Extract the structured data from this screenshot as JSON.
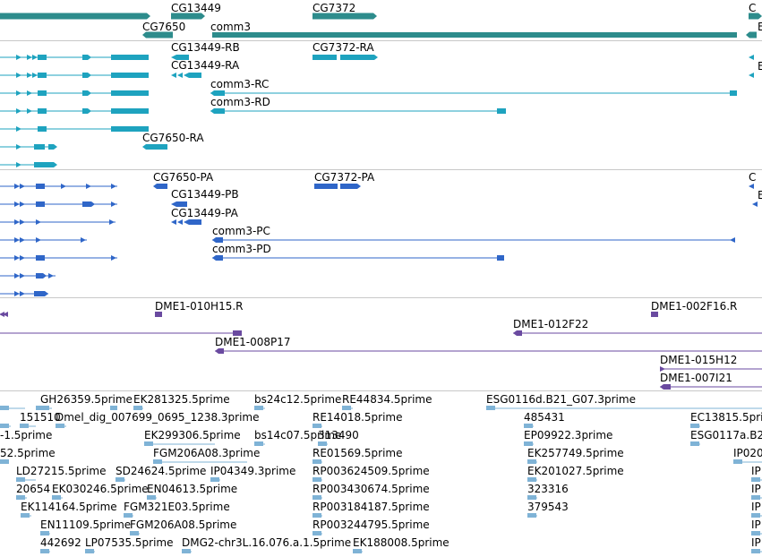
{
  "colors": {
    "gene": "#2d8c8c",
    "mrna": "#1ea3bf",
    "protein": "#2f66c8",
    "clone": "#6a4aa0",
    "est": "#7fb3d6",
    "separator": "#c8c8c8"
  },
  "gene_track": {
    "labels": [
      "CG13449",
      "CG7372",
      "C",
      "CG7650",
      "comm3",
      "E"
    ]
  },
  "transcript_track": {
    "labels": [
      "CG13449-RB",
      "CG7372-RA",
      "E",
      "CG13449-RA",
      "comm3-RC",
      "comm3-RD",
      "CG7650-RA"
    ]
  },
  "protein_track": {
    "labels": [
      "CG7650-PA",
      "CG7372-PA",
      "C",
      "E",
      "CG13449-PB",
      "CG13449-PA",
      "comm3-PC",
      "comm3-PD"
    ]
  },
  "clone_track": {
    "labels": [
      "DME1-010H15.R",
      "DME1-002F16.R",
      "DME1-012F22",
      "DME1-008P17",
      "DME1-015H12",
      "DME1-007I21"
    ]
  },
  "est_track": {
    "labels": [
      "GH26359.5prime",
      "EK281325.5prime",
      "bs24c12.5prime",
      "RE44834.5prime",
      "ESG0116d.B21_G07.3prime",
      "151510",
      "Dmel_dig_007699_0695_1238.3prime",
      "RE14018.5prime",
      "485431",
      "EC13815.5prime",
      "-1.5prime",
      "EK299306.5prime",
      "bs14c07.5prime",
      "313490",
      "EP09922.3prime",
      "ESG0117a.B2",
      "52.5prime",
      "FGM206A08.3prime",
      "RE01569.5prime",
      "EK257749.5prime",
      "IP020",
      "LD27215.5prime",
      "SD24624.5prime",
      "IP04349.3prime",
      "RP003624509.5prime",
      "EK201027.5prime",
      "IP",
      "20654",
      "EK030246.5prime",
      "EN04613.5prime",
      "RP003430674.5prime",
      "323316",
      "IP",
      "EK114164.5prime",
      "FGM321E03.5prime",
      "RP003184187.5prime",
      "379543",
      "IP",
      "EN11109.5prime",
      "FGM206A08.5prime",
      "RP003244795.5prime",
      "IP",
      "442692",
      "LP07535.5prime",
      "DMG2-chr3L.16.076.a.1.5prime",
      "EK188008.5prime",
      "IP"
    ]
  }
}
